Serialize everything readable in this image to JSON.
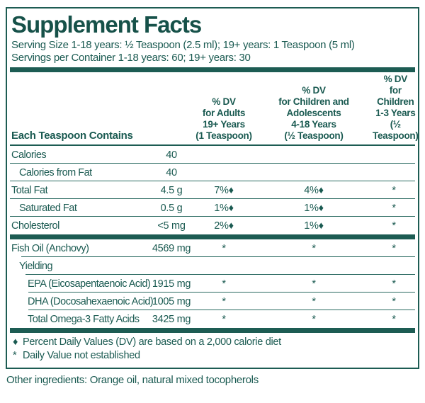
{
  "colors": {
    "teal": "#1d5c53",
    "background": "#ffffff"
  },
  "label": {
    "title": "Supplement Facts",
    "serving_size": "Serving Size 1-18 years: ½ Teaspoon (2.5 ml); 19+ years: 1 Teaspoon (5 ml)",
    "servings_per_container": "Servings per Container 1-18 years: 60; 19+ years: 30",
    "row_header": "Each Teaspoon Contains",
    "columns": {
      "adults": "% DV\nfor Adults\n19+ Years\n(1 Teaspoon)",
      "children_4_18": "% DV\nfor Children and\nAdolescents\n4-18 Years\n(½ Teaspoon)",
      "children_1_3": "% DV\nfor Children\n1-3 Years\n(½ Teaspoon)"
    },
    "rows": [
      {
        "name": "Calories",
        "amount": "40",
        "dv_adults": "",
        "dv_children_4_18": "",
        "dv_children_1_3": ""
      },
      {
        "name": "Calories from Fat",
        "amount": "40",
        "dv_adults": "",
        "dv_children_4_18": "",
        "dv_children_1_3": ""
      },
      {
        "name": "Total Fat",
        "amount": "4.5 g",
        "dv_adults": "7%♦",
        "dv_children_4_18": "4%♦",
        "dv_children_1_3": "*"
      },
      {
        "name": "Saturated Fat",
        "amount": "0.5 g",
        "dv_adults": "1%♦",
        "dv_children_4_18": "1%♦",
        "dv_children_1_3": "*"
      },
      {
        "name": "Cholesterol",
        "amount": "<5 mg",
        "dv_adults": "2%♦",
        "dv_children_4_18": "1%♦",
        "dv_children_1_3": "*"
      },
      {
        "name": "Fish Oil (Anchovy)",
        "amount": "4569 mg",
        "dv_adults": "*",
        "dv_children_4_18": "*",
        "dv_children_1_3": "*"
      },
      {
        "name": "Yielding",
        "amount": "",
        "dv_adults": "",
        "dv_children_4_18": "",
        "dv_children_1_3": ""
      },
      {
        "name": "EPA (Eicosapentaenoic Acid)",
        "amount": "1915 mg",
        "dv_adults": "*",
        "dv_children_4_18": "*",
        "dv_children_1_3": "*"
      },
      {
        "name": "DHA (Docosahexaenoic Acid)",
        "amount": "1005 mg",
        "dv_adults": "*",
        "dv_children_4_18": "*",
        "dv_children_1_3": "*"
      },
      {
        "name": "Total Omega-3 Fatty Acids",
        "amount": "3425 mg",
        "dv_adults": "*",
        "dv_children_4_18": "*",
        "dv_children_1_3": "*"
      }
    ],
    "footnotes": [
      {
        "symbol": "♦",
        "text": "Percent Daily Values (DV) are based on a 2,000 calorie diet"
      },
      {
        "symbol": "*",
        "text": "Daily Value not established"
      }
    ],
    "other_ingredients": "Other ingredients: Orange oil, natural mixed tocopherols"
  }
}
